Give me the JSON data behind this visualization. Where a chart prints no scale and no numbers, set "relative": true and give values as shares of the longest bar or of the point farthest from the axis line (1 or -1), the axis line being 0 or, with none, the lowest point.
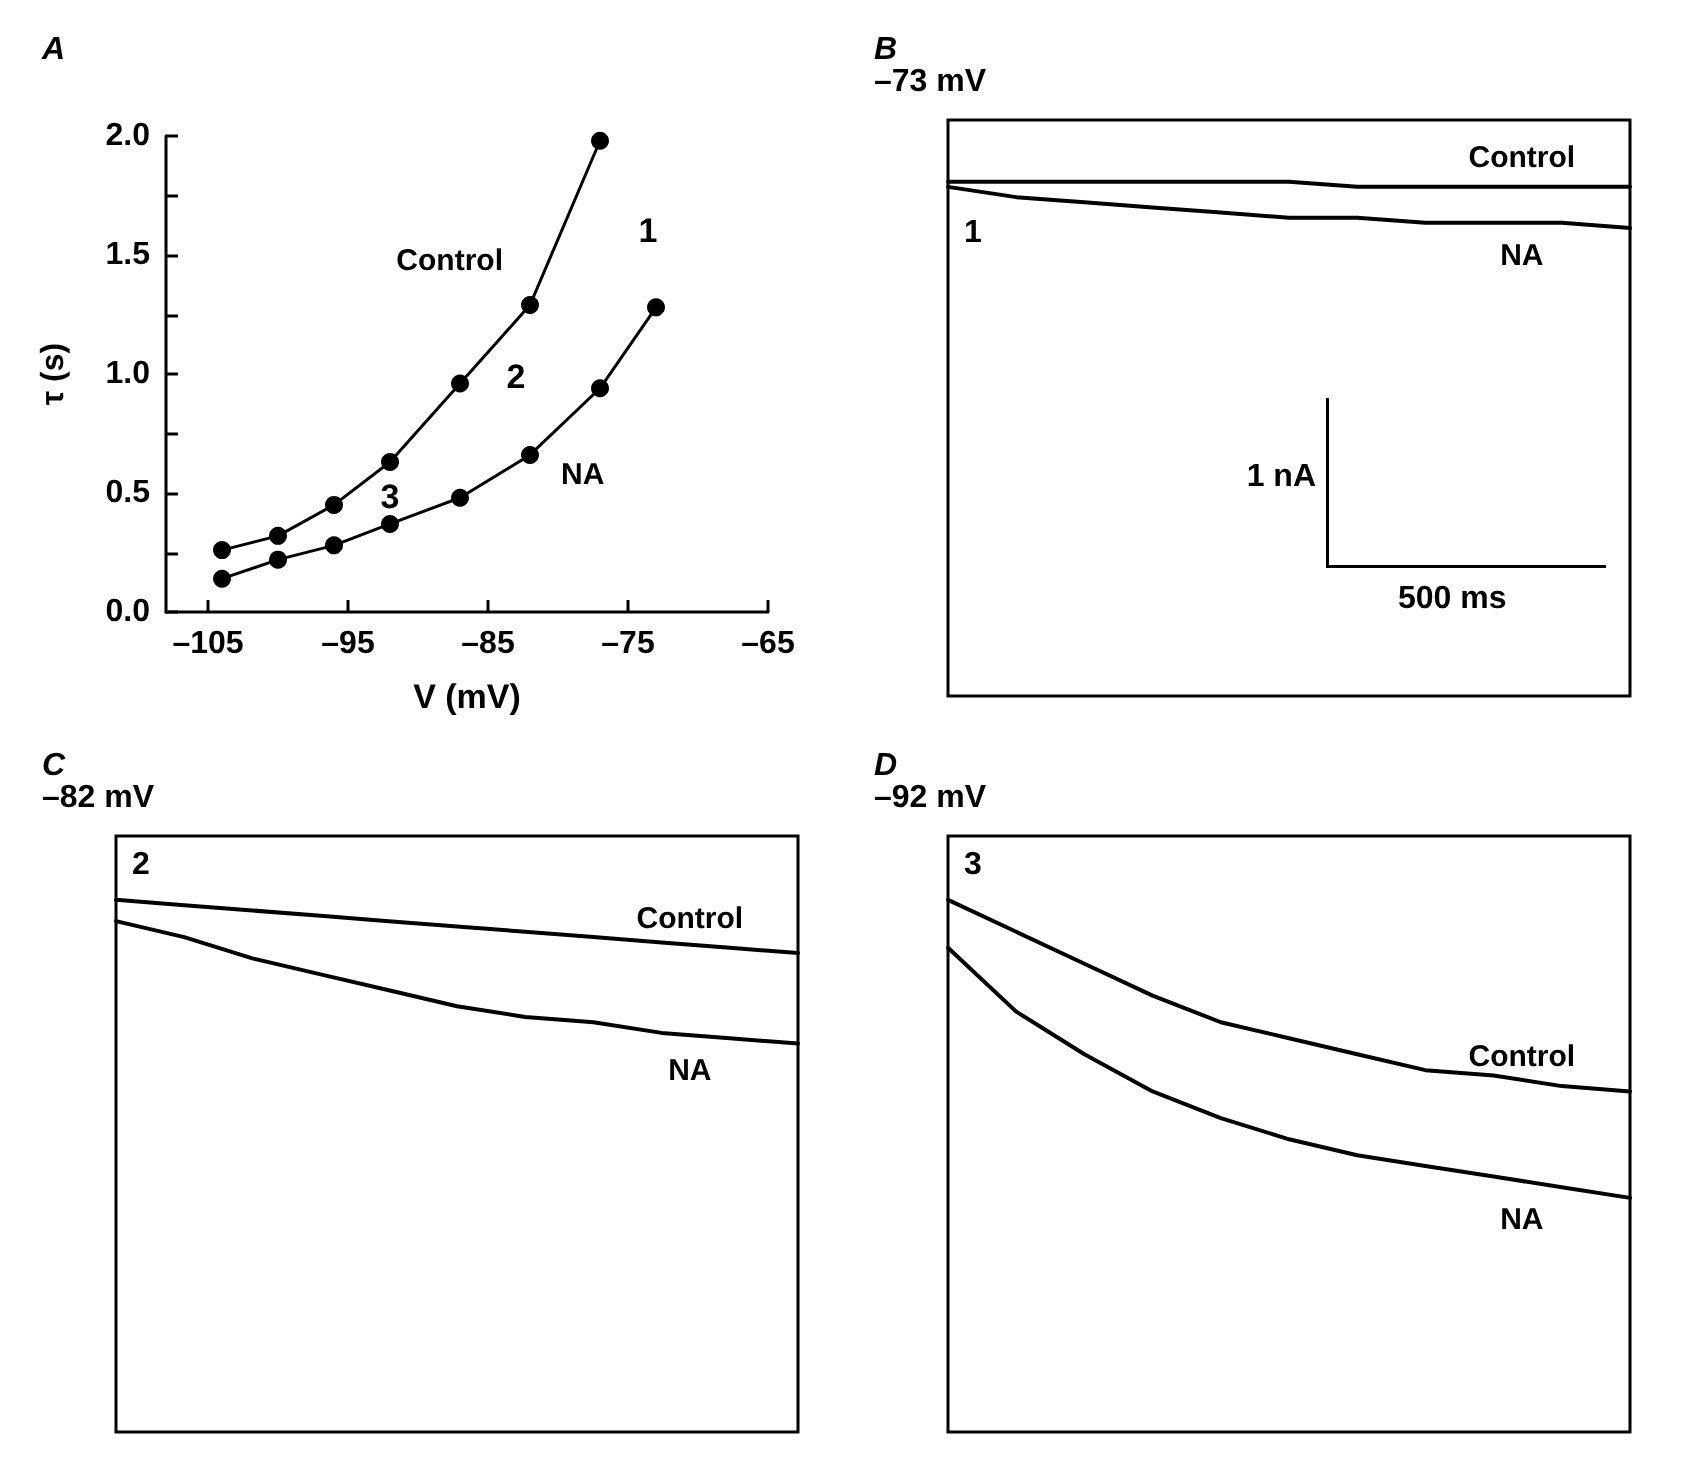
{
  "chart_data": [
    {
      "type": "line",
      "title": "A",
      "xlabel": "V (mV)",
      "ylabel": "τ (s)",
      "marker": "circle",
      "xlim": [
        -108,
        -65
      ],
      "ylim": [
        0,
        2
      ],
      "xticks": [
        {
          "value": -105,
          "label": "–105"
        },
        {
          "value": -95,
          "label": "–95"
        },
        {
          "value": -85,
          "label": "–85"
        },
        {
          "value": -75,
          "label": "–75"
        },
        {
          "value": -65,
          "label": "–65"
        }
      ],
      "yticks": [
        {
          "value": 0,
          "label": "0.0"
        },
        {
          "value": 0.25,
          "label": null
        },
        {
          "value": 0.5,
          "label": "0.5"
        },
        {
          "value": 0.75,
          "label": null
        },
        {
          "value": 1,
          "label": "1.0"
        },
        {
          "value": 1.25,
          "label": null
        },
        {
          "value": 1.5,
          "label": "1.5"
        },
        {
          "value": 1.75,
          "label": null
        },
        {
          "value": 2,
          "label": "2.0"
        }
      ],
      "series": [
        {
          "name": "Control",
          "color": "#000000",
          "x": [
            -104,
            -100,
            -96,
            -92,
            -87,
            -82,
            -77
          ],
          "values": [
            0.26,
            0.32,
            0.45,
            0.63,
            0.96,
            1.29,
            1.98
          ]
        },
        {
          "name": "NA",
          "color": "#000000",
          "x": [
            -104,
            -100,
            -96,
            -92,
            -87,
            -82,
            -77,
            -73
          ],
          "values": [
            0.14,
            0.22,
            0.28,
            0.37,
            0.48,
            0.66,
            0.94,
            1.28
          ]
        }
      ],
      "annotations": [
        "1",
        "2",
        "3"
      ]
    },
    {
      "type": "line",
      "title": "B",
      "subtitle": "–73 mV",
      "relative": true,
      "categories": [
        null,
        null,
        null,
        null,
        null,
        null,
        null,
        null,
        null,
        null,
        null
      ],
      "series": [
        {
          "name": "Control",
          "color": "#000000",
          "values": [
            1,
            1,
            1,
            1,
            1,
            1,
            0.99,
            0.99,
            0.99,
            0.99,
            0.99
          ]
        },
        {
          "name": "NA",
          "color": "#000000",
          "values": [
            0.99,
            0.97,
            0.96,
            0.95,
            0.94,
            0.93,
            0.93,
            0.92,
            0.92,
            0.92,
            0.91
          ]
        }
      ],
      "annotations": [
        "1",
        "1 nA",
        "500 ms"
      ]
    },
    {
      "type": "line",
      "title": "C",
      "subtitle": "–82 mV",
      "relative": true,
      "categories": [
        null,
        null,
        null,
        null,
        null,
        null,
        null,
        null,
        null,
        null,
        null
      ],
      "series": [
        {
          "name": "Control",
          "color": "#000000",
          "values": [
            1,
            0.99,
            0.98,
            0.97,
            0.96,
            0.95,
            0.94,
            0.93,
            0.92,
            0.91,
            0.9
          ]
        },
        {
          "name": "NA",
          "color": "#000000",
          "values": [
            0.96,
            0.93,
            0.89,
            0.86,
            0.83,
            0.8,
            0.78,
            0.77,
            0.75,
            0.74,
            0.73
          ]
        }
      ],
      "annotations": [
        "2"
      ]
    },
    {
      "type": "line",
      "title": "D",
      "subtitle": "–92 mV",
      "relative": true,
      "categories": [
        null,
        null,
        null,
        null,
        null,
        null,
        null,
        null,
        null,
        null,
        null
      ],
      "series": [
        {
          "name": "Control",
          "color": "#000000",
          "values": [
            1,
            0.94,
            0.88,
            0.82,
            0.77,
            0.74,
            0.71,
            0.68,
            0.67,
            0.65,
            0.64
          ]
        },
        {
          "name": "NA",
          "color": "#000000",
          "values": [
            0.91,
            0.79,
            0.71,
            0.64,
            0.59,
            0.55,
            0.52,
            0.5,
            0.48,
            0.46,
            0.44
          ]
        }
      ],
      "annotations": [
        "3"
      ]
    }
  ]
}
